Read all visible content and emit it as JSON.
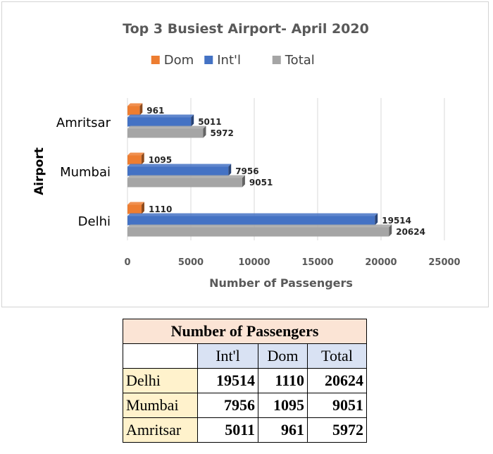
{
  "chart_data": {
    "type": "bar",
    "orientation": "horizontal",
    "title": "Top 3 Busiest Airport- April 2020",
    "xlabel": "Number of Passengers",
    "ylabel": "Airport",
    "categories": [
      "Amritsar",
      "Mumbai",
      "Delhi"
    ],
    "series": [
      {
        "name": "Dom",
        "color": "#ed7d31",
        "values": [
          961,
          1095,
          1110
        ]
      },
      {
        "name": "Int'l",
        "color": "#4472c4",
        "values": [
          5011,
          7956,
          19514
        ]
      },
      {
        "name": "Total",
        "color": "#a5a5a5",
        "values": [
          5972,
          9051,
          20624
        ]
      }
    ],
    "xlim": [
      0,
      25000
    ],
    "xticks": [
      "0",
      "5000",
      "10000",
      "15000",
      "20000",
      "25000"
    ],
    "grid": "vertical",
    "legend_position": "top"
  },
  "table": {
    "title": "Number of Passengers",
    "columns": [
      "Int'l",
      "Dom",
      "Total"
    ],
    "rows": [
      {
        "label": "Delhi",
        "intl": "19514",
        "dom": "1110",
        "total": "20624"
      },
      {
        "label": "Mumbai",
        "intl": "7956",
        "dom": "1095",
        "total": "9051"
      },
      {
        "label": "Amritsar",
        "intl": "5011",
        "dom": "961",
        "total": "5972"
      }
    ]
  }
}
